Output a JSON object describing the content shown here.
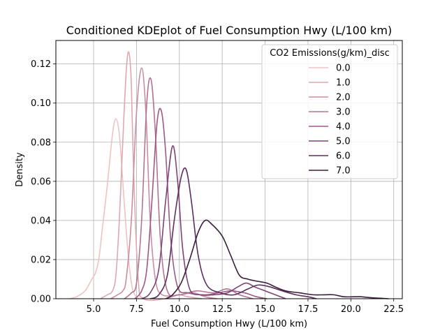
{
  "chart_data": {
    "type": "line",
    "title": "Conditioned KDEplot of Fuel Consumption Hwy (L/100 km)",
    "xlabel": "Fuel Consumption Hwy (L/100 km)",
    "ylabel": "Density",
    "xlim": [
      2.8,
      23.0
    ],
    "ylim": [
      0.0,
      0.132
    ],
    "xticks": [
      5.0,
      7.5,
      10.0,
      12.5,
      15.0,
      17.5,
      20.0,
      22.5
    ],
    "xtick_labels": [
      "5.0",
      "7.5",
      "10.0",
      "12.5",
      "15.0",
      "17.5",
      "20.0",
      "22.5"
    ],
    "yticks": [
      0.0,
      0.02,
      0.04,
      0.06,
      0.08,
      0.1,
      0.12
    ],
    "ytick_labels": [
      "0.00",
      "0.02",
      "0.04",
      "0.06",
      "0.08",
      "0.10",
      "0.12"
    ],
    "grid": true,
    "legend": {
      "title": "CO2 Emissions(g/km)_disc",
      "placement": "top-right"
    },
    "series": [
      {
        "name": "0.0",
        "color": "#ebc4c4",
        "points": [
          [
            3.6,
            0.0
          ],
          [
            4.0,
            0.001
          ],
          [
            4.5,
            0.004
          ],
          [
            4.9,
            0.01
          ],
          [
            5.1,
            0.013
          ],
          [
            5.3,
            0.02
          ],
          [
            5.5,
            0.035
          ],
          [
            5.8,
            0.058
          ],
          [
            6.1,
            0.084
          ],
          [
            6.3,
            0.092
          ],
          [
            6.5,
            0.084
          ],
          [
            6.7,
            0.06
          ],
          [
            6.9,
            0.035
          ],
          [
            7.1,
            0.015
          ],
          [
            7.3,
            0.004
          ],
          [
            7.6,
            0.0
          ]
        ]
      },
      {
        "name": "1.0",
        "color": "#dda8b1",
        "points": [
          [
            5.4,
            0.0
          ],
          [
            5.8,
            0.002
          ],
          [
            6.1,
            0.004
          ],
          [
            6.3,
            0.012
          ],
          [
            6.5,
            0.04
          ],
          [
            6.7,
            0.08
          ],
          [
            6.9,
            0.116
          ],
          [
            7.05,
            0.126
          ],
          [
            7.2,
            0.11
          ],
          [
            7.35,
            0.06
          ],
          [
            7.6,
            0.01
          ],
          [
            7.9,
            0.0
          ],
          [
            9.2,
            0.0
          ],
          [
            9.9,
            0.002
          ],
          [
            10.5,
            0.001
          ],
          [
            11.3,
            0.0
          ]
        ]
      },
      {
        "name": "2.0",
        "color": "#c98da2",
        "points": [
          [
            6.0,
            0.0
          ],
          [
            6.4,
            0.002
          ],
          [
            6.7,
            0.004
          ],
          [
            6.9,
            0.01
          ],
          [
            7.2,
            0.04
          ],
          [
            7.5,
            0.095
          ],
          [
            7.8,
            0.118
          ],
          [
            8.05,
            0.095
          ],
          [
            8.3,
            0.04
          ],
          [
            8.6,
            0.01
          ],
          [
            9.0,
            0.002
          ],
          [
            10.0,
            0.002
          ],
          [
            10.8,
            0.003
          ],
          [
            11.5,
            0.001
          ],
          [
            12.2,
            0.0
          ]
        ]
      },
      {
        "name": "3.0",
        "color": "#b47494",
        "points": [
          [
            6.8,
            0.0
          ],
          [
            7.2,
            0.003
          ],
          [
            7.5,
            0.008
          ],
          [
            7.8,
            0.04
          ],
          [
            8.1,
            0.1
          ],
          [
            8.35,
            0.112
          ],
          [
            8.6,
            0.085
          ],
          [
            8.9,
            0.03
          ],
          [
            9.3,
            0.004
          ],
          [
            10.0,
            0.002
          ],
          [
            11.0,
            0.004
          ],
          [
            12.0,
            0.003
          ],
          [
            12.8,
            0.005
          ],
          [
            13.5,
            0.002
          ],
          [
            14.3,
            0.0
          ]
        ]
      },
      {
        "name": "4.0",
        "color": "#9a5a86",
        "points": [
          [
            7.4,
            0.0
          ],
          [
            7.8,
            0.004
          ],
          [
            8.1,
            0.015
          ],
          [
            8.4,
            0.05
          ],
          [
            8.7,
            0.09
          ],
          [
            8.95,
            0.096
          ],
          [
            9.2,
            0.075
          ],
          [
            9.5,
            0.03
          ],
          [
            9.9,
            0.006
          ],
          [
            10.5,
            0.003
          ],
          [
            11.5,
            0.002
          ],
          [
            12.3,
            0.003
          ],
          [
            13.0,
            0.004
          ],
          [
            13.8,
            0.003
          ],
          [
            14.5,
            0.001
          ],
          [
            15.1,
            0.0
          ]
        ]
      },
      {
        "name": "5.0",
        "color": "#7c4476",
        "points": [
          [
            7.8,
            0.0
          ],
          [
            8.3,
            0.003
          ],
          [
            8.8,
            0.015
          ],
          [
            9.2,
            0.05
          ],
          [
            9.6,
            0.078
          ],
          [
            9.9,
            0.06
          ],
          [
            10.2,
            0.025
          ],
          [
            10.6,
            0.005
          ],
          [
            11.2,
            0.002
          ],
          [
            12.0,
            0.002
          ],
          [
            12.8,
            0.003
          ],
          [
            13.4,
            0.006
          ],
          [
            13.9,
            0.008
          ],
          [
            14.4,
            0.006
          ],
          [
            15.0,
            0.004
          ],
          [
            15.6,
            0.002
          ],
          [
            16.2,
            0.0
          ]
        ]
      },
      {
        "name": "6.0",
        "color": "#5c2e5f",
        "points": [
          [
            8.3,
            0.0
          ],
          [
            8.8,
            0.002
          ],
          [
            9.3,
            0.012
          ],
          [
            9.7,
            0.04
          ],
          [
            10.1,
            0.062
          ],
          [
            10.4,
            0.066
          ],
          [
            10.7,
            0.05
          ],
          [
            11.1,
            0.022
          ],
          [
            11.6,
            0.007
          ],
          [
            12.4,
            0.003
          ],
          [
            13.2,
            0.002
          ],
          [
            14.0,
            0.005
          ],
          [
            14.6,
            0.007
          ],
          [
            15.3,
            0.006
          ],
          [
            16.0,
            0.004
          ],
          [
            16.8,
            0.002
          ],
          [
            17.5,
            0.001
          ],
          [
            18.0,
            0.0
          ]
        ]
      },
      {
        "name": "7.0",
        "color": "#3a1f3c",
        "points": [
          [
            9.2,
            0.0
          ],
          [
            9.6,
            0.002
          ],
          [
            10.1,
            0.008
          ],
          [
            10.6,
            0.02
          ],
          [
            11.1,
            0.034
          ],
          [
            11.5,
            0.04
          ],
          [
            11.9,
            0.038
          ],
          [
            12.5,
            0.032
          ],
          [
            13.0,
            0.022
          ],
          [
            13.5,
            0.012
          ],
          [
            14.0,
            0.01
          ],
          [
            14.5,
            0.009
          ],
          [
            15.1,
            0.008
          ],
          [
            15.6,
            0.006
          ],
          [
            16.2,
            0.004
          ],
          [
            17.0,
            0.003
          ],
          [
            17.8,
            0.002
          ],
          [
            18.4,
            0.002
          ],
          [
            19.0,
            0.002
          ],
          [
            19.6,
            0.001
          ],
          [
            20.2,
            0.001
          ],
          [
            20.6,
            0.001
          ],
          [
            21.2,
            0.0005
          ],
          [
            22.2,
            0.0
          ]
        ]
      }
    ]
  }
}
